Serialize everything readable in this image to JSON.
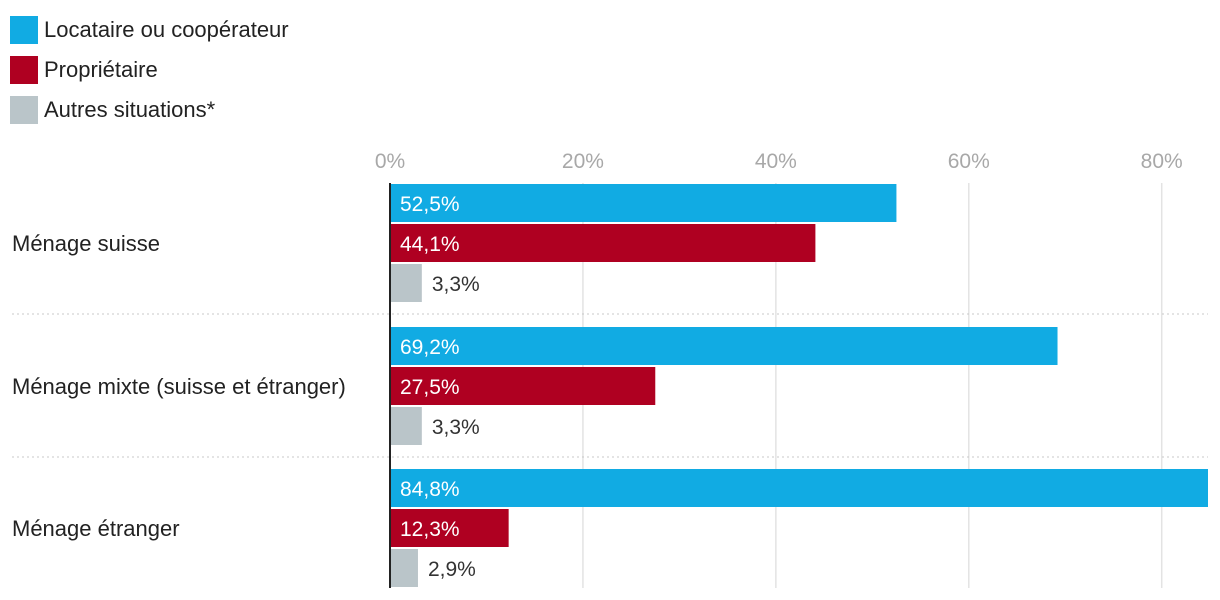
{
  "colors": {
    "locataire": "#11ABE3",
    "proprietaire": "#AF0021",
    "autres": "#BAC5C9",
    "grid": "#E3E3E3",
    "tick_text": "#A8A8A8",
    "separator": "#C8C8C8",
    "axis": "#222222"
  },
  "legend": [
    {
      "label": "Locataire ou coopérateur",
      "color": "#11ABE3"
    },
    {
      "label": "Propriétaire",
      "color": "#AF0021"
    },
    {
      "label": "Autres situations*",
      "color": "#BAC5C9"
    }
  ],
  "chart_data": {
    "type": "bar",
    "orientation": "horizontal",
    "title": "",
    "xlabel": "",
    "ylabel": "",
    "xlim": [
      0,
      84.8
    ],
    "xticks": [
      0,
      20,
      40,
      60,
      80
    ],
    "xtick_labels": [
      "0%",
      "20%",
      "40%",
      "60%",
      "80%"
    ],
    "grid": true,
    "legend_position": "top-left",
    "categories": [
      "Ménage suisse",
      "Ménage mixte (suisse et étranger)",
      "Ménage étranger"
    ],
    "series": [
      {
        "name": "Locataire ou coopérateur",
        "values": [
          52.5,
          69.2,
          84.8
        ],
        "labels": [
          "52,5%",
          "69,2%",
          "84,8%"
        ]
      },
      {
        "name": "Propriétaire",
        "values": [
          44.1,
          27.5,
          12.3
        ],
        "labels": [
          "44,1%",
          "27,5%",
          "12,3%"
        ]
      },
      {
        "name": "Autres situations*",
        "values": [
          3.3,
          3.3,
          2.9
        ],
        "labels": [
          "3,3%",
          "3,3%",
          "2,9%"
        ]
      }
    ]
  }
}
